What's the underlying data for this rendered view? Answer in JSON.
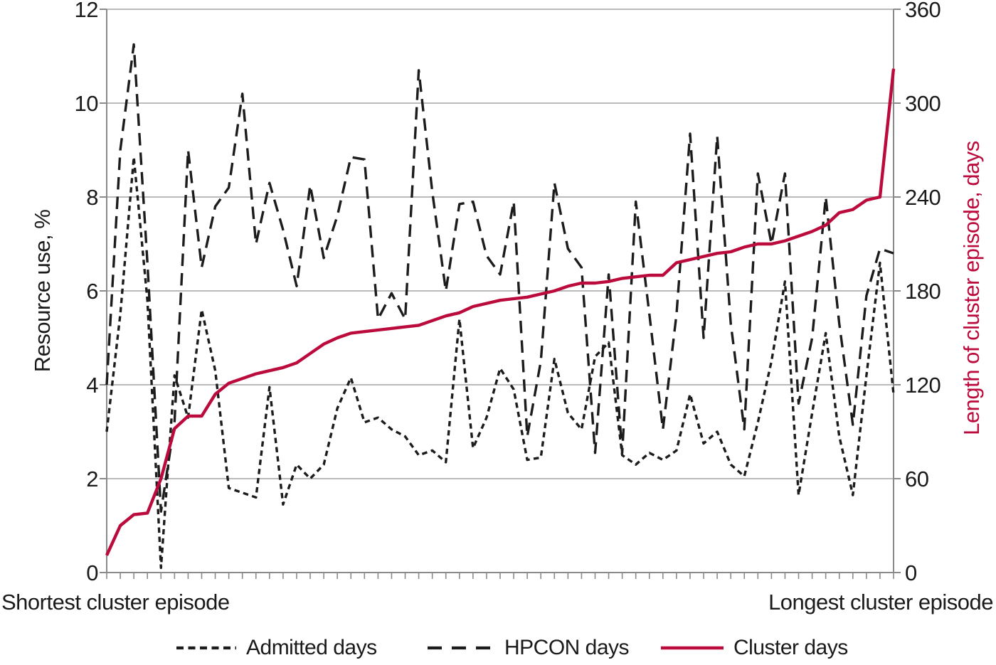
{
  "chart": {
    "left_axis": {
      "title": "Resource use, %",
      "ticks": [
        0,
        2,
        4,
        6,
        8,
        10,
        12
      ],
      "min": 0,
      "max": 12
    },
    "right_axis": {
      "title": "Length of cluster episode, days",
      "ticks": [
        0,
        60,
        120,
        180,
        240,
        300,
        360
      ],
      "min": 0,
      "max": 360
    },
    "x_axis": {
      "left_label": "Shortest cluster episode",
      "right_label": "Longest cluster episode",
      "tick_count": 59
    }
  },
  "legend": {
    "admitted": "Admitted days",
    "hpcon": "HPCON days",
    "cluster": "Cluster days"
  },
  "colors": {
    "admitted": "#1c1c1c",
    "hpcon": "#1c1c1c",
    "cluster": "#bb0a3c",
    "grid": "#a3a3a3",
    "axis": "#8a8a8a",
    "text": "#1a1a1a"
  },
  "chart_data": {
    "type": "line",
    "title": "",
    "x_description": "59 cluster episodes ordered from shortest to longest",
    "xlabel_left": "Shortest cluster episode",
    "xlabel_right": "Longest cluster episode",
    "ylabel_left": "Resource use, %",
    "ylabel_right": "Length of cluster episode, days",
    "left_ylim": [
      0,
      12
    ],
    "right_ylim": [
      0,
      360
    ],
    "grid": true,
    "legend_position": "bottom",
    "series": [
      {
        "name": "Admitted days",
        "axis": "left",
        "unit": "%",
        "style": "short-dash",
        "values": [
          3.0,
          5.5,
          8.85,
          5.8,
          0.1,
          4.2,
          3.3,
          5.6,
          4.3,
          1.8,
          1.7,
          1.6,
          3.95,
          1.45,
          2.3,
          2.0,
          2.3,
          3.5,
          4.15,
          3.2,
          3.3,
          3.05,
          2.9,
          2.5,
          2.6,
          2.35,
          5.4,
          2.65,
          3.3,
          4.35,
          3.9,
          2.4,
          2.45,
          4.55,
          3.4,
          3.05,
          4.6,
          4.9,
          2.5,
          2.3,
          2.55,
          2.4,
          2.6,
          3.8,
          2.75,
          3.0,
          2.3,
          2.05,
          3.2,
          4.5,
          6.2,
          1.65,
          3.4,
          5.1,
          2.9,
          1.65,
          4.2,
          6.6,
          3.8
        ]
      },
      {
        "name": "HPCON days",
        "axis": "left",
        "unit": "%",
        "style": "long-dash",
        "values": [
          4.0,
          9.0,
          11.25,
          6.6,
          1.3,
          3.2,
          9.0,
          6.5,
          7.8,
          8.2,
          10.2,
          7.0,
          8.3,
          7.3,
          6.1,
          8.25,
          6.7,
          7.6,
          8.85,
          8.8,
          5.4,
          5.95,
          5.4,
          10.7,
          8.1,
          6.0,
          7.85,
          7.9,
          6.75,
          6.35,
          7.9,
          2.9,
          4.5,
          8.3,
          6.9,
          6.5,
          2.55,
          6.35,
          2.55,
          7.9,
          5.5,
          3.05,
          5.5,
          9.35,
          5.0,
          9.3,
          5.3,
          3.05,
          8.5,
          7.0,
          8.5,
          3.6,
          5.0,
          8.0,
          5.3,
          3.15,
          5.9,
          6.9,
          6.8
        ]
      },
      {
        "name": "Cluster days",
        "axis": "right",
        "unit": "days",
        "style": "solid",
        "values": [
          11,
          30,
          37,
          38,
          60,
          92,
          100,
          100,
          114,
          121,
          124,
          127,
          129,
          131,
          134,
          140,
          146,
          150,
          153,
          154,
          155,
          156,
          157,
          158,
          161,
          164,
          166,
          170,
          172,
          174,
          175,
          176,
          178,
          180,
          183,
          185,
          185,
          186,
          188,
          189,
          190,
          190,
          198,
          200,
          202,
          204,
          205,
          208,
          210,
          210,
          212,
          215,
          218,
          222,
          230,
          232,
          238,
          240,
          322
        ]
      }
    ]
  }
}
